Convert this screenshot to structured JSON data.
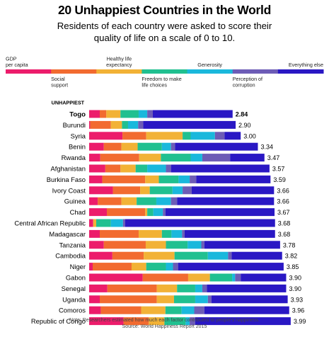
{
  "title": "20 Unhappiest Countries in the World",
  "subtitle": [
    "Residents of each country were asked to score their",
    "quality of life on a scale of 0 to 10."
  ],
  "note": "Note: Researchers estimated how much each factor contributed to people's happiness.",
  "source": "Source: World Happiness Report 2015",
  "chart_data": {
    "type": "bar",
    "orientation": "horizontal",
    "stacked": true,
    "section_label": "UNHAPPIEST",
    "legend": [
      {
        "name": "GDP per capita",
        "label_lines": [
          "GDP",
          "per capita"
        ],
        "color": "#ec1c6b",
        "row": "top"
      },
      {
        "name": "Social support",
        "label_lines": [
          "Social",
          "support"
        ],
        "color": "#f26b30",
        "row": "bottom"
      },
      {
        "name": "Healthy life expectancy",
        "label_lines": [
          "Healthy life",
          "expectancy"
        ],
        "color": "#f2b236",
        "row": "top"
      },
      {
        "name": "Freedom to make life choices",
        "label_lines": [
          "Freedom to make",
          "life choices"
        ],
        "color": "#20c090",
        "row": "bottom"
      },
      {
        "name": "Generosity",
        "label_lines": [
          "Generosity"
        ],
        "color": "#1ab8dc",
        "row": "top"
      },
      {
        "name": "Perception of corruption",
        "label_lines": [
          "Perception of",
          "corruption"
        ],
        "color": "#6d5cb6",
        "row": "bottom"
      },
      {
        "name": "Everything else",
        "label_lines": [
          "Everything else"
        ],
        "color": "#2a18c4",
        "row": "top"
      }
    ],
    "categories": [
      "Togo",
      "Burundi",
      "Syria",
      "Benin",
      "Rwanda",
      "Afghanistan",
      "Burkina Faso",
      "Ivory Coast",
      "Guinea",
      "Chad",
      "Central African Republic",
      "Madagascar",
      "Tanzania",
      "Cambodia",
      "Niger",
      "Gabon",
      "Senegal",
      "Uganda",
      "Comoros",
      "Republic of Congo"
    ],
    "totals": [
      2.84,
      2.9,
      3.0,
      3.34,
      3.47,
      3.57,
      3.59,
      3.66,
      3.66,
      3.67,
      3.68,
      3.68,
      3.78,
      3.82,
      3.85,
      3.9,
      3.9,
      3.93,
      3.96,
      3.99
    ],
    "total_labels": [
      "2.84",
      "2.90",
      "3.00",
      "3.34",
      "3.47",
      "3.57",
      "3.59",
      "3.66",
      "3.66",
      "3.67",
      "3.68",
      "3.68",
      "3.78",
      "3.82",
      "3.85",
      "3.90",
      "3.90",
      "3.93",
      "3.96",
      "3.99"
    ],
    "highlight": "Togo",
    "series": [
      {
        "name": "GDP per capita",
        "values": [
          0.21,
          0.02,
          0.66,
          0.29,
          0.22,
          0.32,
          0.26,
          0.47,
          0.17,
          0.35,
          0.08,
          0.21,
          0.29,
          0.46,
          0.07,
          1.06,
          0.36,
          0.21,
          0.23,
          0.68
        ]
      },
      {
        "name": "Social support",
        "values": [
          0.13,
          0.41,
          0.47,
          0.35,
          0.77,
          0.3,
          0.85,
          0.54,
          0.47,
          0.76,
          0.0,
          0.77,
          0.83,
          0.62,
          0.77,
          0.9,
          0.98,
          1.13,
          0.8,
          0.5
        ]
      },
      {
        "name": "Healthy life expectancy",
        "values": [
          0.28,
          0.22,
          0.72,
          0.32,
          0.43,
          0.3,
          0.27,
          0.19,
          0.3,
          0.04,
          0.06,
          0.46,
          0.4,
          0.61,
          0.29,
          0.43,
          0.4,
          0.34,
          0.48,
          0.31
        ]
      },
      {
        "name": "Freedom to make life choices",
        "values": [
          0.36,
          0.12,
          0.16,
          0.48,
          0.59,
          0.23,
          0.39,
          0.45,
          0.39,
          0.12,
          0.29,
          0.19,
          0.43,
          0.66,
          0.39,
          0.44,
          0.36,
          0.42,
          0.32,
          0.42
        ]
      },
      {
        "name": "Generosity",
        "values": [
          0.17,
          0.2,
          0.48,
          0.18,
          0.23,
          0.37,
          0.22,
          0.2,
          0.29,
          0.19,
          0.24,
          0.21,
          0.27,
          0.4,
          0.14,
          0.06,
          0.14,
          0.25,
          0.25,
          0.08
        ]
      },
      {
        "name": "Perception of corruption",
        "values": [
          0.11,
          0.1,
          0.19,
          0.08,
          0.55,
          0.1,
          0.13,
          0.18,
          0.12,
          0.05,
          0.04,
          0.05,
          0.06,
          0.07,
          0.1,
          0.11,
          0.09,
          0.07,
          0.2,
          0.11
        ]
      },
      {
        "name": "Everything else",
        "values": [
          1.58,
          1.83,
          0.32,
          1.64,
          0.68,
          1.95,
          1.47,
          1.63,
          1.92,
          2.16,
          2.97,
          1.79,
          1.5,
          1.0,
          2.09,
          0.9,
          1.57,
          1.51,
          1.68,
          1.89
        ]
      }
    ]
  }
}
